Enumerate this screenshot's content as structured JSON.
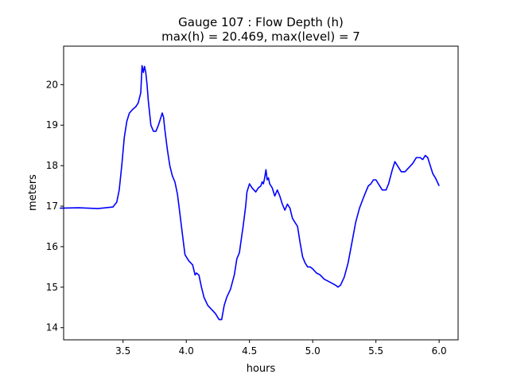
{
  "chart_data": {
    "type": "line",
    "title_line1": "Gauge 107 : Flow Depth (h)",
    "title_line2": "max(h) =  20.469,    max(level) = 7",
    "xlabel": "hours",
    "ylabel": "meters",
    "xlim": [
      3.03,
      6.15
    ],
    "ylim": [
      13.7,
      20.95
    ],
    "xticks": [
      3.5,
      4.0,
      4.5,
      5.0,
      5.5,
      6.0
    ],
    "xtick_labels": [
      "3.5",
      "4.0",
      "4.5",
      "5.0",
      "5.5",
      "6.0"
    ],
    "yticks": [
      14,
      15,
      16,
      17,
      18,
      19,
      20
    ],
    "ytick_labels": [
      "14",
      "15",
      "16",
      "17",
      "18",
      "19",
      "20"
    ],
    "grid": false,
    "series": [
      {
        "color": "#0000ff",
        "x": [
          3.0,
          3.15,
          3.3,
          3.42,
          3.45,
          3.47,
          3.49,
          3.51,
          3.53,
          3.55,
          3.58,
          3.6,
          3.62,
          3.64,
          3.65,
          3.66,
          3.67,
          3.68,
          3.69,
          3.7,
          3.71,
          3.72,
          3.74,
          3.76,
          3.78,
          3.8,
          3.81,
          3.82,
          3.83,
          3.85,
          3.87,
          3.89,
          3.91,
          3.93,
          3.95,
          3.97,
          3.99,
          4.02,
          4.05,
          4.07,
          4.08,
          4.1,
          4.12,
          4.14,
          4.17,
          4.2,
          4.23,
          4.26,
          4.28,
          4.3,
          4.32,
          4.35,
          4.38,
          4.4,
          4.42,
          4.44,
          4.45,
          4.47,
          4.48,
          4.5,
          4.52,
          4.55,
          4.57,
          4.59,
          4.6,
          4.61,
          4.62,
          4.63,
          4.64,
          4.65,
          4.66,
          4.68,
          4.7,
          4.72,
          4.74,
          4.76,
          4.78,
          4.8,
          4.82,
          4.84,
          4.86,
          4.88,
          4.9,
          4.92,
          4.94,
          4.96,
          4.98,
          5.0,
          5.03,
          5.06,
          5.09,
          5.12,
          5.15,
          5.18,
          5.2,
          5.22,
          5.25,
          5.28,
          5.31,
          5.34,
          5.37,
          5.4,
          5.42,
          5.44,
          5.46,
          5.48,
          5.5,
          5.52,
          5.55,
          5.58,
          5.6,
          5.63,
          5.65,
          5.68,
          5.7,
          5.73,
          5.76,
          5.79,
          5.82,
          5.85,
          5.87,
          5.89,
          5.91,
          5.93,
          5.95,
          5.97,
          6.0
        ],
        "y": [
          16.95,
          16.96,
          16.94,
          16.98,
          17.1,
          17.4,
          18.0,
          18.7,
          19.1,
          19.3,
          19.4,
          19.45,
          19.55,
          19.8,
          20.47,
          20.3,
          20.45,
          20.3,
          20.0,
          19.6,
          19.3,
          19.0,
          18.85,
          18.85,
          19.0,
          19.2,
          19.3,
          19.2,
          18.9,
          18.4,
          18.0,
          17.75,
          17.6,
          17.3,
          16.8,
          16.3,
          15.8,
          15.65,
          15.55,
          15.3,
          15.35,
          15.3,
          15.0,
          14.75,
          14.55,
          14.45,
          14.35,
          14.2,
          14.2,
          14.55,
          14.75,
          14.95,
          15.3,
          15.7,
          15.85,
          16.3,
          16.5,
          17.0,
          17.35,
          17.55,
          17.45,
          17.35,
          17.45,
          17.5,
          17.6,
          17.55,
          17.7,
          17.9,
          17.65,
          17.7,
          17.55,
          17.45,
          17.25,
          17.4,
          17.25,
          17.05,
          16.9,
          17.05,
          16.95,
          16.7,
          16.6,
          16.5,
          16.1,
          15.75,
          15.6,
          15.5,
          15.5,
          15.45,
          15.35,
          15.3,
          15.2,
          15.15,
          15.1,
          15.05,
          15.0,
          15.05,
          15.25,
          15.6,
          16.1,
          16.6,
          16.95,
          17.2,
          17.35,
          17.5,
          17.55,
          17.65,
          17.65,
          17.55,
          17.4,
          17.4,
          17.55,
          17.9,
          18.1,
          17.95,
          17.85,
          17.85,
          17.95,
          18.05,
          18.2,
          18.2,
          18.15,
          18.25,
          18.2,
          18.0,
          17.8,
          17.7,
          17.5
        ]
      }
    ]
  }
}
